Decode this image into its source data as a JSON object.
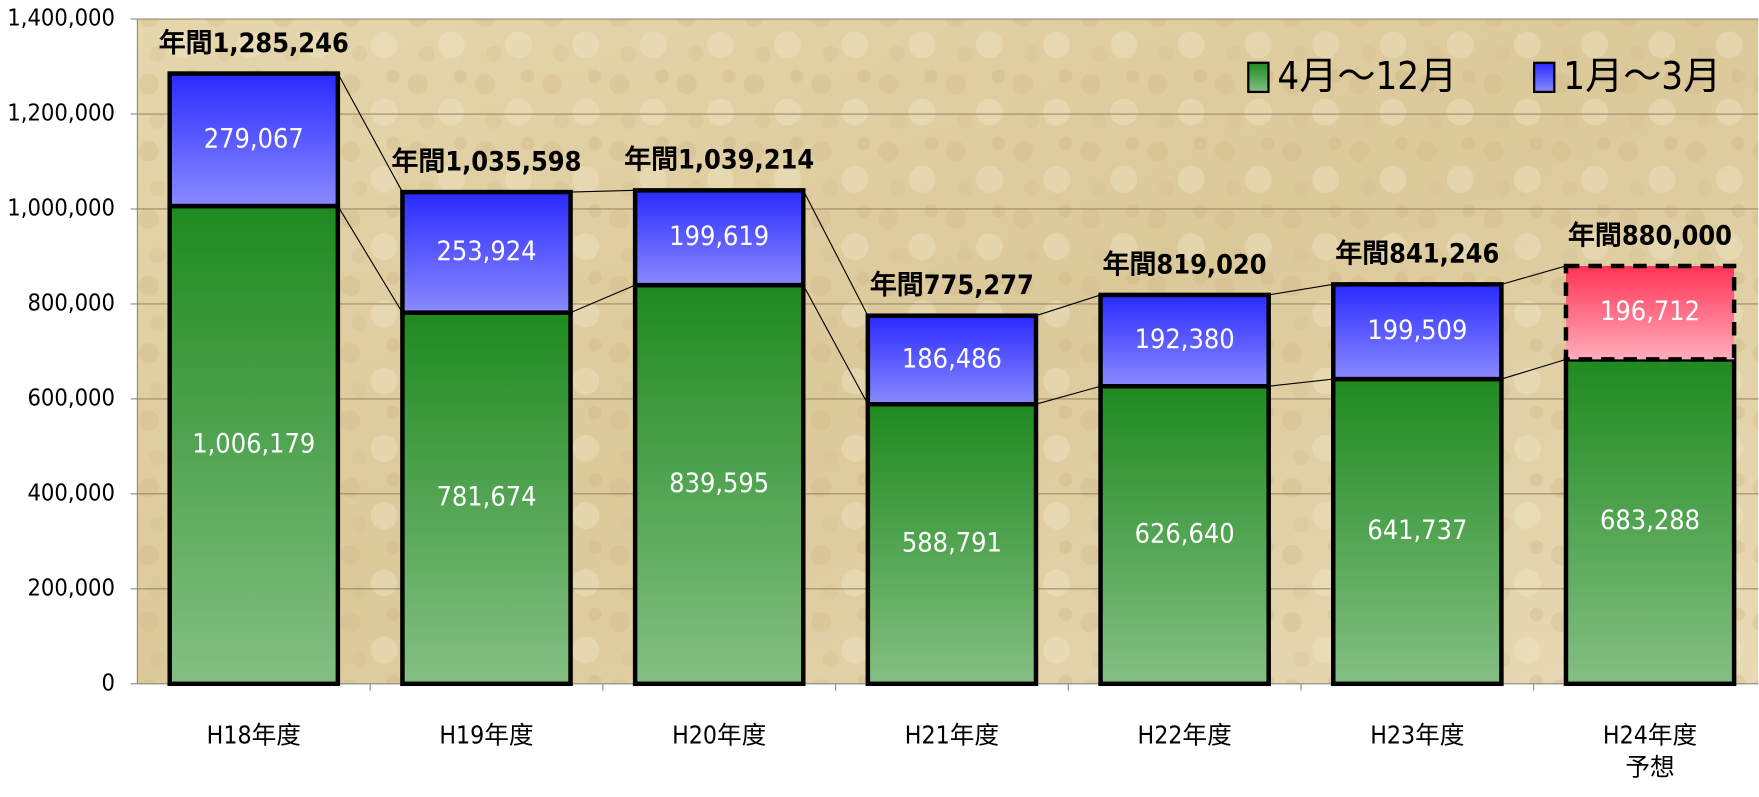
{
  "chart_data": {
    "type": "stacked_bar",
    "categories": [
      "H18年度",
      "H19年度",
      "H20年度",
      "H21年度",
      "H22年度",
      "H23年度",
      "H24年度\n予想"
    ],
    "series": [
      {
        "name": "4月～12月",
        "color": "#1f8a1f",
        "values": [
          1006179,
          781674,
          839595,
          588791,
          626640,
          641737,
          683288
        ],
        "value_labels": [
          "1,006,179",
          "781,674",
          "839,595",
          "588,791",
          "626,640",
          "641,737",
          "683,288"
        ]
      },
      {
        "name": "1月～3月",
        "color": "#2a2aff",
        "values": [
          279067,
          253924,
          199619,
          186486,
          192380,
          199509,
          196712
        ],
        "value_labels": [
          "279,067",
          "253,924",
          "199,619",
          "186,486",
          "192,380",
          "199,509",
          "196,712"
        ]
      }
    ],
    "totals": [
      1285246,
      1035598,
      1039214,
      775277,
      819020,
      841246,
      880000
    ],
    "total_labels": [
      "年間1,285,246",
      "年間1,035,598",
      "年間1,039,214",
      "年間775,277",
      "年間819,020",
      "年間841,246",
      "年間880,000"
    ],
    "highlight": {
      "index": 6,
      "color": "#ff3355"
    },
    "ylim": [
      0,
      1400000
    ],
    "yticks": [
      0,
      {
        "value": 200000,
        "label": "200,000"
      },
      {
        "value": 400000,
        "label": "400,000"
      },
      {
        "value": 600000,
        "label": "600,000"
      },
      {
        "value": 800000,
        "label": "800,000"
      },
      {
        "value": 1000000,
        "label": "1,000,000"
      },
      {
        "value": 1200000,
        "label": "1,200,000"
      },
      {
        "value": 1400000,
        "label": "1,400,000"
      }
    ],
    "grid": true,
    "legend": "top-right"
  }
}
